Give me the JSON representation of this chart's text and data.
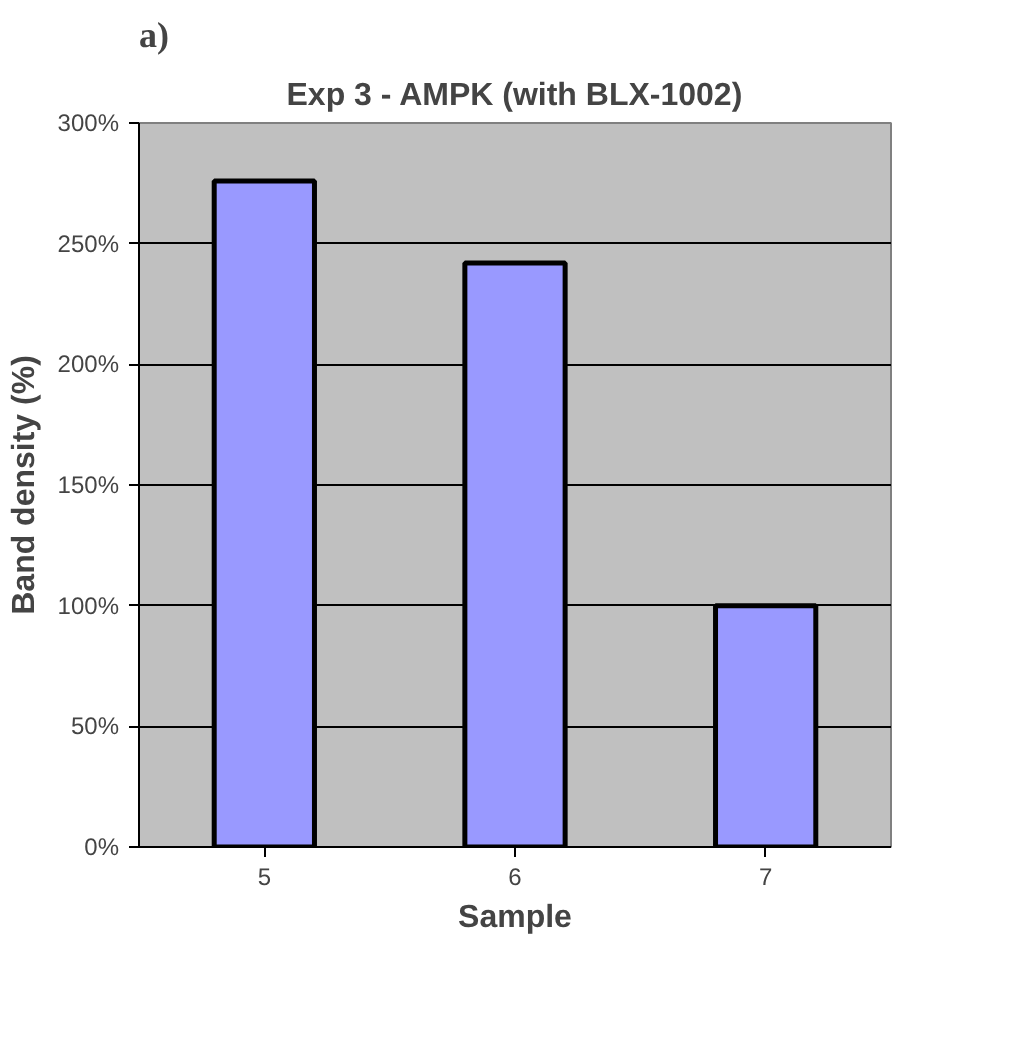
{
  "chart_data": {
    "type": "bar",
    "title": "Exp 3 - AMPK (with BLX-1002)",
    "annotations": [
      "a)"
    ],
    "xlabel": "Sample",
    "ylabel": "Band density (%)",
    "categories": [
      "5",
      "6",
      "7"
    ],
    "values": [
      276,
      242,
      100
    ],
    "color": "#9999ff",
    "ylim": [
      0,
      300
    ],
    "yticks": [
      {
        "value": 0,
        "label": "0%"
      },
      {
        "value": 50,
        "label": "50%"
      },
      {
        "value": 100,
        "label": "100%"
      },
      {
        "value": 150,
        "label": "150%"
      },
      {
        "value": 200,
        "label": "200%"
      },
      {
        "value": 250,
        "label": "250%"
      },
      {
        "value": 300,
        "label": "300%"
      }
    ],
    "grid": "y"
  }
}
